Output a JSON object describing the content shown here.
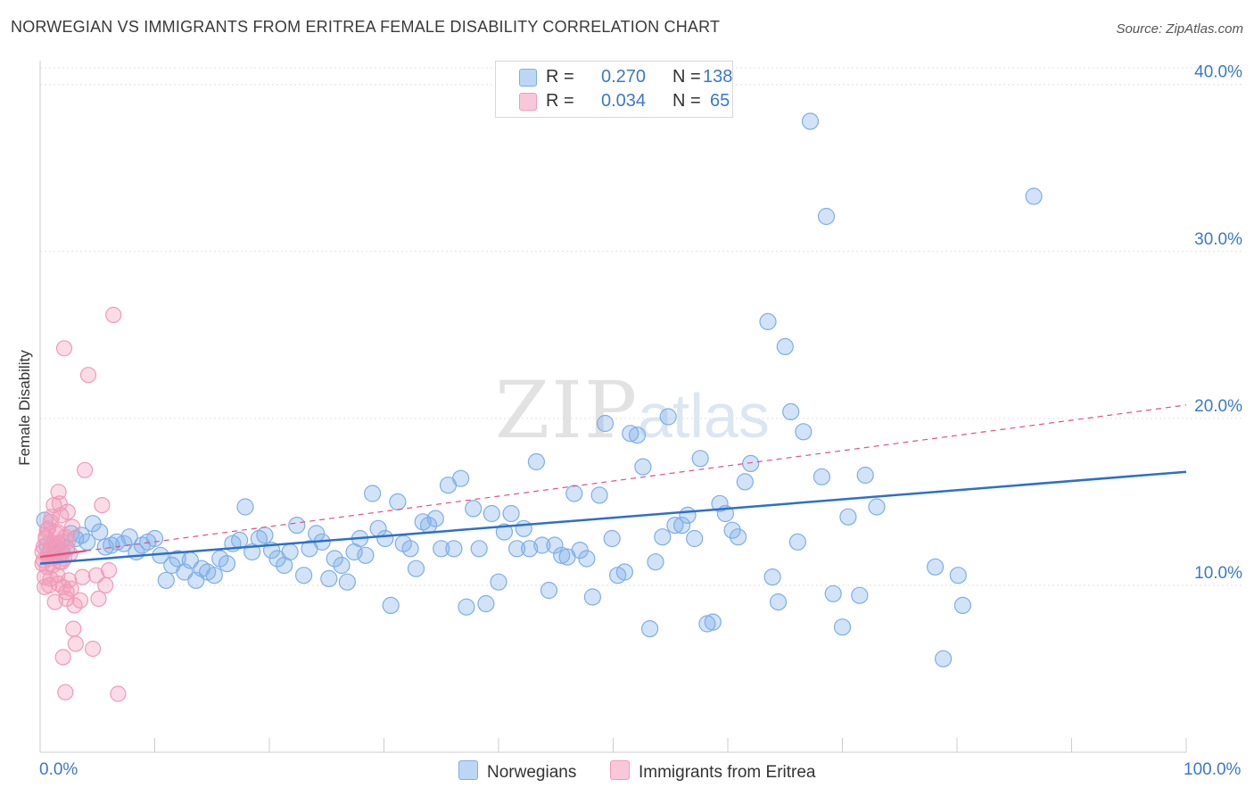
{
  "title": "NORWEGIAN VS IMMIGRANTS FROM ERITREA FEMALE DISABILITY CORRELATION CHART",
  "source": "Source: ZipAtlas.com",
  "watermark": "ZIPatlas",
  "legend": {
    "rows": [
      {
        "series": "Norwegians",
        "r_label": "R =",
        "r_value": "0.270",
        "n_label": "N =",
        "n_value": "138",
        "color": "#7eaee8"
      },
      {
        "series": "Immigrants from Eritrea",
        "r_label": "R =",
        "r_value": "0.034",
        "n_label": "N =",
        "n_value": "65",
        "color": "#f29ab8"
      }
    ]
  },
  "chart_data": {
    "type": "scatter",
    "title": "NORWEGIAN VS IMMIGRANTS FROM ERITREA FEMALE DISABILITY CORRELATION CHART",
    "xlabel": "",
    "ylabel": "Female Disability",
    "xlim": [
      0,
      100
    ],
    "ylim": [
      0,
      41
    ],
    "x_tick_labels": [
      "0.0%",
      "100.0%"
    ],
    "y_ticks": [
      10,
      20,
      30,
      40
    ],
    "y_tick_labels": [
      "10.0%",
      "20.0%",
      "30.0%",
      "40.0%"
    ],
    "grid": true,
    "series": [
      {
        "name": "Norwegians",
        "color": "#7eaee8",
        "line_color": "#2c6fcf",
        "trend": {
          "x": [
            0,
            100
          ],
          "y": [
            11.3,
            16.8
          ],
          "style": "solid"
        },
        "points": [
          [
            0.4,
            13.9
          ],
          [
            0.6,
            12.4
          ],
          [
            0.9,
            12.1
          ],
          [
            1.2,
            11.8
          ],
          [
            1.5,
            12.5
          ],
          [
            1.9,
            12.0
          ],
          [
            2.3,
            12.2
          ],
          [
            2.7,
            13.1
          ],
          [
            3.1,
            12.8
          ],
          [
            3.6,
            13.0
          ],
          [
            4.1,
            12.6
          ],
          [
            4.6,
            13.7
          ],
          [
            5.2,
            13.2
          ],
          [
            5.7,
            12.3
          ],
          [
            6.2,
            12.4
          ],
          [
            6.7,
            12.6
          ],
          [
            7.3,
            12.5
          ],
          [
            7.8,
            12.9
          ],
          [
            8.4,
            12.0
          ],
          [
            8.9,
            12.4
          ],
          [
            9.4,
            12.6
          ],
          [
            10.0,
            12.8
          ],
          [
            10.5,
            11.8
          ],
          [
            11.0,
            10.3
          ],
          [
            11.5,
            11.2
          ],
          [
            12.0,
            11.6
          ],
          [
            12.6,
            10.8
          ],
          [
            13.1,
            11.5
          ],
          [
            13.6,
            10.3
          ],
          [
            14.1,
            11.0
          ],
          [
            14.6,
            10.8
          ],
          [
            15.2,
            10.6
          ],
          [
            15.7,
            11.6
          ],
          [
            16.3,
            11.3
          ],
          [
            16.8,
            12.5
          ],
          [
            17.4,
            12.7
          ],
          [
            17.9,
            14.7
          ],
          [
            18.5,
            12.0
          ],
          [
            19.1,
            12.8
          ],
          [
            19.6,
            13.0
          ],
          [
            20.2,
            12.1
          ],
          [
            20.7,
            11.6
          ],
          [
            21.3,
            11.2
          ],
          [
            21.8,
            12.0
          ],
          [
            22.4,
            13.6
          ],
          [
            23.0,
            10.6
          ],
          [
            23.5,
            12.2
          ],
          [
            24.1,
            13.1
          ],
          [
            24.6,
            12.6
          ],
          [
            25.2,
            10.4
          ],
          [
            25.7,
            11.6
          ],
          [
            26.3,
            11.2
          ],
          [
            26.8,
            10.2
          ],
          [
            27.4,
            12.0
          ],
          [
            27.9,
            12.8
          ],
          [
            28.4,
            11.8
          ],
          [
            29.0,
            15.5
          ],
          [
            29.5,
            13.4
          ],
          [
            30.1,
            12.8
          ],
          [
            30.6,
            8.8
          ],
          [
            31.2,
            15.0
          ],
          [
            31.7,
            12.5
          ],
          [
            32.3,
            12.2
          ],
          [
            32.8,
            11.0
          ],
          [
            33.4,
            13.8
          ],
          [
            33.9,
            13.6
          ],
          [
            34.5,
            14.0
          ],
          [
            35.0,
            12.2
          ],
          [
            35.6,
            16.0
          ],
          [
            36.1,
            12.2
          ],
          [
            36.7,
            16.4
          ],
          [
            37.2,
            8.7
          ],
          [
            37.8,
            14.6
          ],
          [
            38.3,
            12.2
          ],
          [
            38.9,
            8.9
          ],
          [
            39.4,
            14.3
          ],
          [
            40.0,
            10.2
          ],
          [
            40.5,
            13.2
          ],
          [
            41.1,
            14.3
          ],
          [
            41.6,
            12.2
          ],
          [
            42.2,
            13.4
          ],
          [
            42.7,
            12.2
          ],
          [
            43.3,
            17.4
          ],
          [
            43.8,
            12.4
          ],
          [
            44.4,
            9.7
          ],
          [
            44.9,
            12.4
          ],
          [
            45.5,
            11.8
          ],
          [
            46.0,
            11.7
          ],
          [
            46.6,
            15.5
          ],
          [
            47.1,
            12.1
          ],
          [
            47.7,
            11.6
          ],
          [
            48.2,
            9.3
          ],
          [
            48.8,
            15.4
          ],
          [
            49.3,
            19.7
          ],
          [
            49.9,
            12.8
          ],
          [
            50.4,
            10.6
          ],
          [
            51.0,
            10.8
          ],
          [
            51.5,
            19.1
          ],
          [
            52.1,
            19.0
          ],
          [
            52.6,
            17.1
          ],
          [
            53.2,
            7.4
          ],
          [
            53.7,
            11.4
          ],
          [
            54.3,
            12.9
          ],
          [
            54.8,
            20.1
          ],
          [
            55.4,
            13.6
          ],
          [
            56.0,
            13.6
          ],
          [
            56.5,
            14.2
          ],
          [
            57.1,
            12.8
          ],
          [
            57.6,
            17.6
          ],
          [
            58.2,
            7.7
          ],
          [
            58.7,
            7.8
          ],
          [
            59.3,
            14.9
          ],
          [
            59.8,
            14.3
          ],
          [
            60.4,
            13.3
          ],
          [
            60.9,
            12.9
          ],
          [
            61.5,
            16.2
          ],
          [
            62.0,
            17.3
          ],
          [
            63.5,
            25.8
          ],
          [
            63.9,
            10.5
          ],
          [
            64.4,
            9.0
          ],
          [
            65.0,
            24.3
          ],
          [
            65.5,
            20.4
          ],
          [
            66.1,
            12.6
          ],
          [
            66.6,
            19.2
          ],
          [
            67.2,
            37.8
          ],
          [
            68.2,
            16.5
          ],
          [
            68.6,
            32.1
          ],
          [
            69.2,
            9.5
          ],
          [
            70.0,
            7.5
          ],
          [
            70.5,
            14.1
          ],
          [
            71.5,
            9.4
          ],
          [
            72.0,
            16.6
          ],
          [
            73.0,
            14.7
          ],
          [
            78.1,
            11.1
          ],
          [
            78.8,
            5.6
          ],
          [
            80.1,
            10.6
          ],
          [
            80.5,
            8.8
          ],
          [
            86.7,
            33.3
          ]
        ]
      },
      {
        "name": "Immigrants from Eritrea",
        "color": "#f29ab8",
        "line_color": "#e0527f",
        "trend": {
          "x": [
            0,
            100
          ],
          "y": [
            11.7,
            20.8
          ],
          "style": "dashed"
        },
        "trend_solid_until_x": 4.0,
        "points": [
          [
            0.2,
            12.0
          ],
          [
            0.3,
            11.5
          ],
          [
            0.4,
            10.5
          ],
          [
            0.5,
            12.8
          ],
          [
            0.6,
            13.3
          ],
          [
            0.7,
            11.8
          ],
          [
            0.8,
            10.0
          ],
          [
            0.9,
            13.8
          ],
          [
            1.0,
            12.4
          ],
          [
            1.1,
            11.2
          ],
          [
            1.2,
            14.8
          ],
          [
            1.3,
            12.1
          ],
          [
            1.4,
            13.1
          ],
          [
            1.5,
            10.6
          ],
          [
            1.6,
            15.6
          ],
          [
            1.7,
            11.4
          ],
          [
            1.8,
            14.2
          ],
          [
            1.9,
            12.6
          ],
          [
            2.0,
            9.9
          ],
          [
            2.1,
            11.6
          ],
          [
            2.2,
            12.9
          ],
          [
            2.3,
            9.2
          ],
          [
            2.4,
            14.4
          ],
          [
            2.5,
            10.3
          ],
          [
            2.6,
            11.9
          ],
          [
            2.7,
            9.8
          ],
          [
            2.8,
            13.5
          ],
          [
            2.9,
            7.4
          ],
          [
            3.0,
            8.8
          ],
          [
            3.1,
            6.5
          ],
          [
            0.2,
            11.3
          ],
          [
            0.3,
            12.3
          ],
          [
            0.4,
            9.9
          ],
          [
            0.5,
            12.9
          ],
          [
            0.6,
            11.1
          ],
          [
            0.7,
            13.4
          ],
          [
            0.8,
            11.6
          ],
          [
            0.9,
            10.4
          ],
          [
            1.0,
            14.1
          ],
          [
            1.1,
            11.8
          ],
          [
            1.2,
            12.5
          ],
          [
            1.3,
            9.0
          ],
          [
            1.4,
            11.7
          ],
          [
            1.5,
            13.2
          ],
          [
            1.6,
            10.1
          ],
          [
            1.7,
            14.9
          ],
          [
            1.8,
            12.2
          ],
          [
            1.9,
            11.4
          ],
          [
            2.0,
            5.7
          ],
          [
            2.1,
            24.2
          ],
          [
            2.2,
            3.6
          ],
          [
            2.3,
            9.6
          ],
          [
            2.4,
            12.6
          ],
          [
            3.5,
            9.1
          ],
          [
            3.7,
            10.5
          ],
          [
            3.9,
            16.9
          ],
          [
            4.2,
            22.6
          ],
          [
            4.6,
            6.2
          ],
          [
            4.9,
            10.6
          ],
          [
            5.1,
            9.2
          ],
          [
            5.4,
            14.8
          ],
          [
            5.7,
            10.0
          ],
          [
            6.0,
            10.9
          ],
          [
            6.4,
            26.2
          ],
          [
            6.8,
            3.5
          ]
        ]
      }
    ]
  }
}
